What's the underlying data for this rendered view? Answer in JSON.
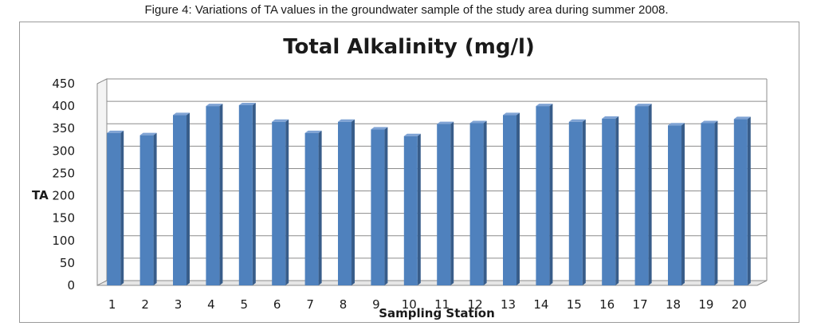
{
  "caption": "Figure 4: Variations of TA values in the groundwater sample of the study area during summer 2008.",
  "chart_data": {
    "type": "bar",
    "title": "Total Alkalinity (mg/l)",
    "xlabel": "Sampling Station",
    "ylabel": "TA",
    "categories": [
      "1",
      "2",
      "3",
      "4",
      "5",
      "6",
      "7",
      "8",
      "9",
      "10",
      "11",
      "12",
      "13",
      "14",
      "15",
      "16",
      "17",
      "18",
      "19",
      "20"
    ],
    "values": [
      340,
      335,
      380,
      400,
      402,
      365,
      340,
      365,
      348,
      333,
      360,
      362,
      380,
      400,
      365,
      372,
      400,
      357,
      362,
      371
    ],
    "yticks": [
      "0",
      "50",
      "100",
      "150",
      "200",
      "250",
      "300",
      "350",
      "400",
      "450"
    ],
    "ylim": [
      0,
      450
    ],
    "grid": true,
    "legend": "none",
    "colors": {
      "bar_front": "#4f81bd",
      "bar_side": "#385d8a",
      "bar_top": "#7fa3d4",
      "grid": "#8c8c8c"
    }
  }
}
